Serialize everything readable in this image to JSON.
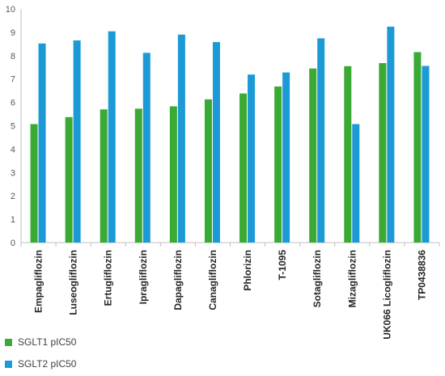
{
  "chart_data": {
    "type": "bar",
    "title": "",
    "xlabel": "",
    "ylabel": "",
    "ylim": [
      0,
      10
    ],
    "yticks": [
      "0",
      "1",
      "2",
      "3",
      "4",
      "5",
      "6",
      "7",
      "8",
      "9",
      "10"
    ],
    "grid": false,
    "legend_position": "bottom-left",
    "categories": [
      "Empagliflozin",
      "Luseogliflozin",
      "Ertugliflozin",
      "Ipragliflozin",
      "Dapagliflozin",
      "Canagliflozin",
      "Phlorizin",
      "T-1095",
      "Sotagliflozin",
      "Mizagliflozin",
      "UK066 Licogliflozin",
      "TP0438836"
    ],
    "series": [
      {
        "name": "SGLT1 pIC50",
        "color": "#3aaa35",
        "values": [
          5.07,
          5.37,
          5.7,
          5.73,
          5.83,
          6.13,
          6.38,
          6.68,
          7.45,
          7.55,
          7.68,
          8.15
        ]
      },
      {
        "name": "SGLT2 pIC50",
        "color": "#1b9ad6",
        "values": [
          8.52,
          8.65,
          9.04,
          8.12,
          8.9,
          8.58,
          7.19,
          7.28,
          8.74,
          5.07,
          9.24,
          7.56
        ]
      }
    ]
  }
}
